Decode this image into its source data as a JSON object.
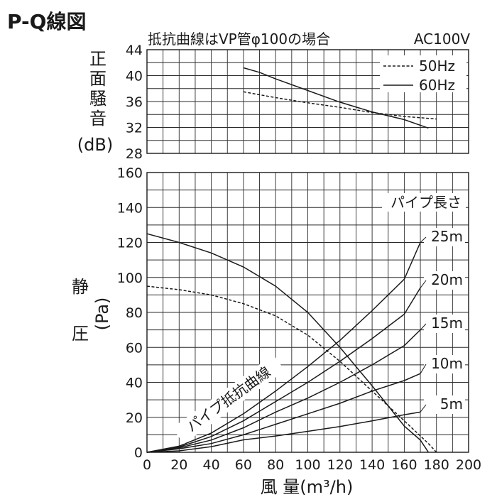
{
  "title": "P-Q線図",
  "subtitle": "抵抗曲線はVP管φ100の場合",
  "power": "AC100V",
  "xlabel": "風 量(m³/h)",
  "chart_data": [
    {
      "type": "line",
      "name": "noise",
      "ylabel_chars": [
        "正",
        "面",
        "騒",
        "音"
      ],
      "ylabel_unit": "(dB)",
      "xlim": [
        0,
        200
      ],
      "ylim": [
        28,
        44
      ],
      "x_ticks": [
        0,
        20,
        40,
        60,
        80,
        100,
        120,
        140,
        160,
        180,
        200
      ],
      "y_ticks": [
        28,
        32,
        36,
        40,
        44
      ],
      "grid": true,
      "legend_position": "top-right",
      "series": [
        {
          "name": "50Hz",
          "style": "dashed",
          "x": [
            60,
            80,
            100,
            120,
            140,
            160,
            180
          ],
          "y": [
            37.5,
            36.6,
            35.8,
            35.1,
            34.3,
            33.7,
            33.3
          ]
        },
        {
          "name": "60Hz",
          "style": "solid",
          "x": [
            60,
            70,
            80,
            100,
            120,
            140,
            160,
            175
          ],
          "y": [
            41.2,
            40.5,
            39.5,
            37.7,
            35.9,
            34.4,
            33.2,
            31.9
          ]
        }
      ]
    },
    {
      "type": "line",
      "name": "pressure",
      "ylabel_chars": [
        "静",
        "圧"
      ],
      "ylabel_unit": "(Pa)",
      "xlim": [
        0,
        200
      ],
      "ylim": [
        0,
        160
      ],
      "x_ticks": [
        0,
        20,
        40,
        60,
        80,
        100,
        120,
        140,
        160,
        180,
        200
      ],
      "y_ticks": [
        0,
        20,
        40,
        60,
        80,
        100,
        120,
        140,
        160
      ],
      "grid": true,
      "series": [
        {
          "name": "60Hz",
          "style": "solid",
          "x": [
            0,
            20,
            40,
            60,
            80,
            100,
            120,
            140,
            160,
            170,
            175
          ],
          "y": [
            125,
            120,
            114,
            106,
            95,
            80,
            60,
            38,
            15,
            7,
            0
          ]
        },
        {
          "name": "50Hz",
          "style": "dashed",
          "x": [
            0,
            20,
            40,
            60,
            80,
            100,
            120,
            140,
            160,
            175,
            180
          ],
          "y": [
            95,
            93,
            90,
            85,
            78,
            67,
            52,
            35,
            18,
            5,
            0
          ]
        }
      ],
      "pipe_curves_label": "パイプ抵抗曲線",
      "pipe_length_label": "パイプ長さ",
      "pipe_curves": [
        {
          "label": "5m",
          "x": [
            0,
            20,
            40,
            60,
            80,
            100,
            120,
            140,
            160,
            170
          ],
          "y": [
            0,
            0.8,
            3.2,
            7.1,
            9.3,
            12,
            14.7,
            18,
            21.5,
            23
          ]
        },
        {
          "label": "10m",
          "x": [
            0,
            20,
            40,
            60,
            80,
            100,
            120,
            140,
            160,
            170
          ],
          "y": [
            0,
            2,
            5,
            10,
            16,
            22,
            28,
            35,
            41,
            45
          ]
        },
        {
          "label": "15m",
          "x": [
            0,
            20,
            40,
            60,
            80,
            100,
            120,
            140,
            160,
            170
          ],
          "y": [
            0,
            2.5,
            7,
            14,
            23,
            31,
            40,
            50,
            61,
            70
          ]
        },
        {
          "label": "20m",
          "x": [
            0,
            20,
            40,
            60,
            80,
            100,
            120,
            140,
            160,
            170
          ],
          "y": [
            0,
            3,
            9,
            18,
            29,
            40,
            52,
            65,
            79,
            94
          ]
        },
        {
          "label": "25m",
          "x": [
            0,
            20,
            40,
            60,
            80,
            100,
            120,
            140,
            160,
            170
          ],
          "y": [
            0,
            3.5,
            11,
            22,
            35,
            49,
            64,
            81,
            99,
            120
          ]
        }
      ]
    }
  ]
}
